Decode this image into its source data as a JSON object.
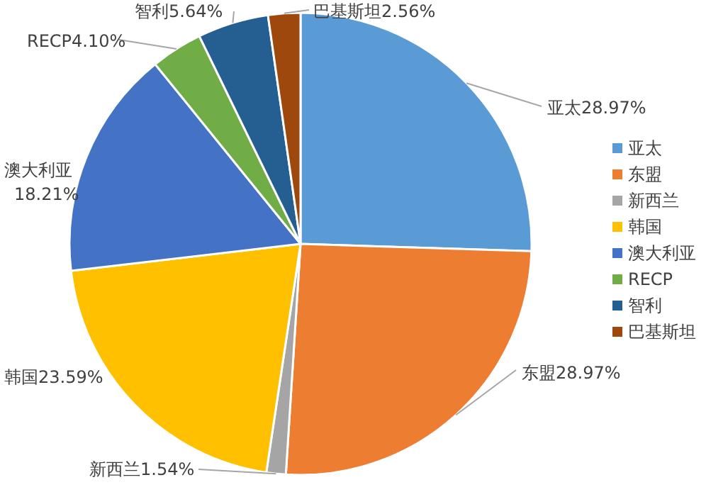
{
  "chart_data": {
    "type": "pie",
    "categories": [
      "亚太",
      "东盟",
      "新西兰",
      "韩国",
      "澳大利亚",
      "RECP",
      "智利",
      "巴基斯坦"
    ],
    "values": [
      28.97,
      28.97,
      1.54,
      23.59,
      18.21,
      4.1,
      5.64,
      2.56
    ],
    "value_labels": [
      "28.97%",
      "28.97%",
      "1.54%",
      "23.59%",
      "18.21%",
      "4.10%",
      "5.64%",
      "2.56%"
    ],
    "colors": [
      "#5b9bd5",
      "#ed7d31",
      "#a5a5a5",
      "#ffc000",
      "#4472c4",
      "#70ad47",
      "#255e91",
      "#9e480e"
    ],
    "legend": "right"
  }
}
